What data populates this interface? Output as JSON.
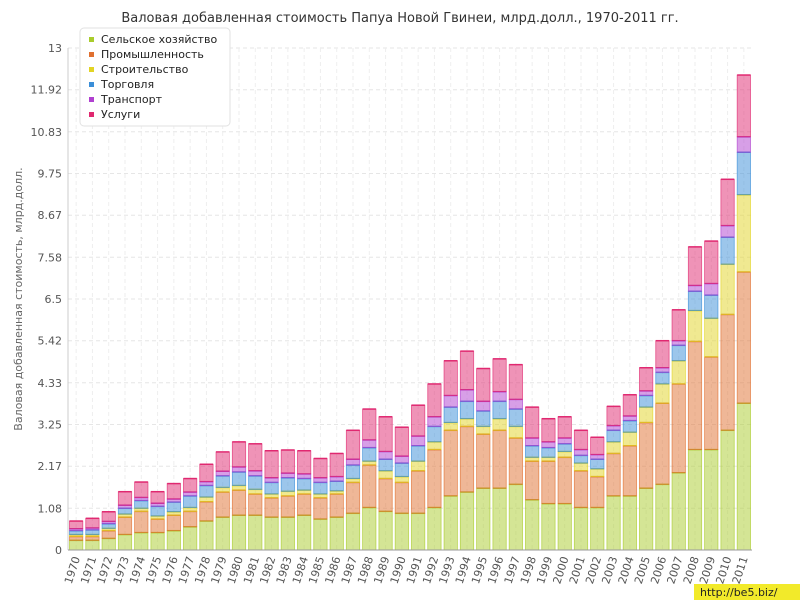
{
  "watermark": "http://be5.biz/",
  "chart_data": {
    "type": "bar",
    "stacked": true,
    "title": "Валовая добавленная стоимость Папуа Новой Гвинеи, млрд.долл., 1970-2011 гг.",
    "ylabel": "Валовая добавленная стоимость, млрд.долл.",
    "xlabel": "",
    "ylim": [
      0,
      13
    ],
    "yticks": [
      "0",
      "1.08",
      "2.17",
      "3.25",
      "4.33",
      "5.42",
      "6.5",
      "7.58",
      "8.67",
      "9.75",
      "10.83",
      "11.92",
      "13"
    ],
    "grid": true,
    "legend_position": "top-left",
    "categories": [
      "1970",
      "1971",
      "1972",
      "1973",
      "1974",
      "1975",
      "1976",
      "1977",
      "1978",
      "1979",
      "1980",
      "1981",
      "1982",
      "1983",
      "1984",
      "1985",
      "1986",
      "1987",
      "1988",
      "1989",
      "1990",
      "1991",
      "1992",
      "1993",
      "1994",
      "1995",
      "1996",
      "1997",
      "1998",
      "1999",
      "2000",
      "2001",
      "2002",
      "2003",
      "2004",
      "2005",
      "2006",
      "2007",
      "2008",
      "2009",
      "2010",
      "2011"
    ],
    "series": [
      {
        "name": "Сельское хозяйство",
        "color": "#a9cc2c",
        "values": [
          0.25,
          0.25,
          0.3,
          0.4,
          0.45,
          0.45,
          0.5,
          0.6,
          0.75,
          0.85,
          0.9,
          0.9,
          0.85,
          0.85,
          0.9,
          0.8,
          0.85,
          0.95,
          1.1,
          1.0,
          0.95,
          0.95,
          1.1,
          1.4,
          1.5,
          1.6,
          1.6,
          1.7,
          1.3,
          1.2,
          1.2,
          1.1,
          1.1,
          1.4,
          1.4,
          1.6,
          1.7,
          2.0,
          2.6,
          2.6,
          3.1,
          3.8
        ]
      },
      {
        "name": "Промышленность",
        "color": "#e07030",
        "values": [
          0.1,
          0.1,
          0.2,
          0.45,
          0.55,
          0.35,
          0.4,
          0.4,
          0.5,
          0.65,
          0.65,
          0.55,
          0.5,
          0.55,
          0.55,
          0.55,
          0.6,
          0.8,
          1.1,
          0.85,
          0.8,
          1.1,
          1.5,
          1.7,
          1.7,
          1.4,
          1.5,
          1.2,
          1.0,
          1.1,
          1.2,
          0.95,
          0.8,
          1.1,
          1.3,
          1.7,
          2.1,
          2.3,
          2.8,
          2.4,
          3.0,
          3.4
        ]
      },
      {
        "name": "Строительство",
        "color": "#e2d424",
        "values": [
          0.05,
          0.05,
          0.06,
          0.08,
          0.08,
          0.08,
          0.09,
          0.1,
          0.12,
          0.12,
          0.12,
          0.12,
          0.1,
          0.12,
          0.1,
          0.1,
          0.08,
          0.1,
          0.1,
          0.2,
          0.15,
          0.25,
          0.2,
          0.2,
          0.2,
          0.2,
          0.3,
          0.3,
          0.1,
          0.1,
          0.15,
          0.2,
          0.2,
          0.3,
          0.35,
          0.4,
          0.5,
          0.6,
          0.8,
          1.0,
          1.3,
          2.0
        ]
      },
      {
        "name": "Торговля",
        "color": "#3a8ed8",
        "values": [
          0.1,
          0.12,
          0.12,
          0.15,
          0.2,
          0.25,
          0.25,
          0.3,
          0.3,
          0.3,
          0.35,
          0.35,
          0.3,
          0.35,
          0.3,
          0.3,
          0.25,
          0.35,
          0.35,
          0.3,
          0.35,
          0.4,
          0.4,
          0.4,
          0.45,
          0.4,
          0.45,
          0.45,
          0.3,
          0.25,
          0.2,
          0.2,
          0.25,
          0.3,
          0.3,
          0.3,
          0.3,
          0.4,
          0.5,
          0.6,
          0.7,
          1.1
        ]
      },
      {
        "name": "Транспорт",
        "color": "#b040d0",
        "values": [
          0.05,
          0.05,
          0.06,
          0.08,
          0.08,
          0.08,
          0.08,
          0.1,
          0.1,
          0.12,
          0.13,
          0.13,
          0.12,
          0.12,
          0.12,
          0.12,
          0.12,
          0.15,
          0.2,
          0.2,
          0.18,
          0.25,
          0.25,
          0.3,
          0.3,
          0.25,
          0.25,
          0.25,
          0.2,
          0.15,
          0.15,
          0.15,
          0.12,
          0.12,
          0.12,
          0.12,
          0.12,
          0.12,
          0.15,
          0.3,
          0.3,
          0.4
        ]
      },
      {
        "name": "Услуги",
        "color": "#e02870",
        "values": [
          0.2,
          0.25,
          0.25,
          0.35,
          0.4,
          0.3,
          0.4,
          0.35,
          0.45,
          0.5,
          0.65,
          0.7,
          0.7,
          0.6,
          0.6,
          0.5,
          0.6,
          0.75,
          0.8,
          0.9,
          0.75,
          0.8,
          0.85,
          0.9,
          1.0,
          0.85,
          0.85,
          0.9,
          0.8,
          0.6,
          0.55,
          0.5,
          0.45,
          0.5,
          0.55,
          0.6,
          0.7,
          0.8,
          1.0,
          1.1,
          1.2,
          1.6
        ]
      }
    ]
  }
}
